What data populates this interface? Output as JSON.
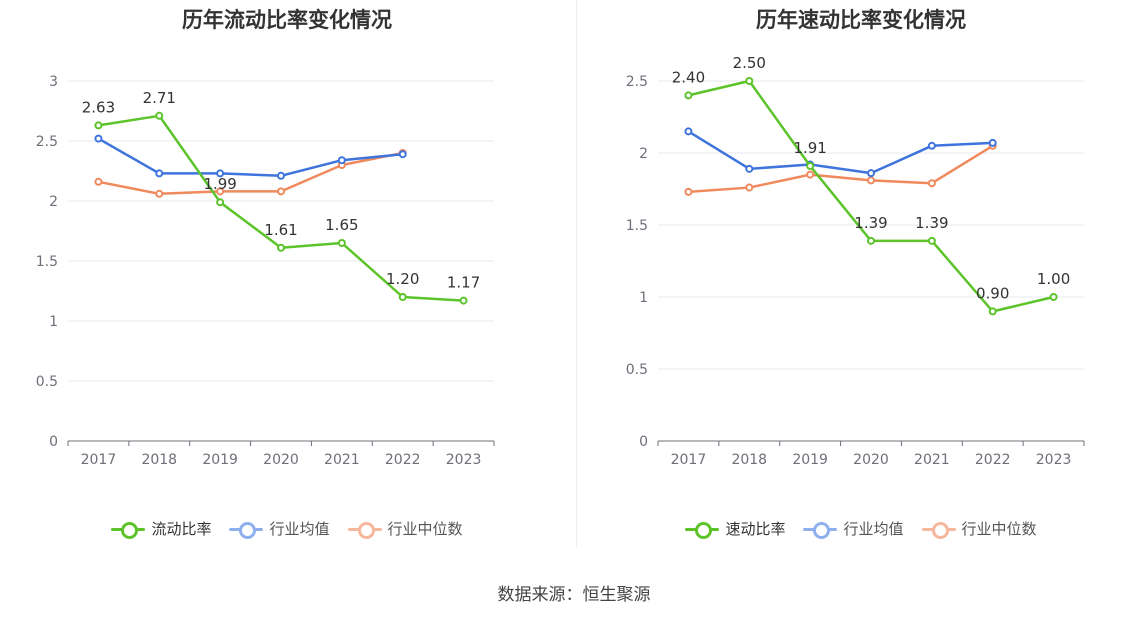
{
  "colors": {
    "primary": "#5cc42a",
    "industry_avg": "#3f74dd",
    "industry_median": "#f08a5d",
    "grid": "#e6e9f2",
    "axis": "#6e7079"
  },
  "footer": "数据来源：恒生聚源",
  "chart_data": [
    {
      "type": "line",
      "title": "历年流动比率变化情况",
      "categories": [
        "2017",
        "2018",
        "2019",
        "2020",
        "2021",
        "2022",
        "2023"
      ],
      "yticks": [
        "0",
        "0.5",
        "1",
        "1.5",
        "2",
        "2.5",
        "3"
      ],
      "ylim": [
        0,
        3
      ],
      "grid": true,
      "legend_position": "bottom",
      "series": [
        {
          "name": "流动比率",
          "values": [
            2.63,
            2.71,
            1.99,
            1.61,
            1.65,
            1.2,
            1.17
          ],
          "labels": [
            "2.63",
            "2.71",
            "1.99",
            "1.61",
            "1.65",
            "1.20",
            "1.17"
          ]
        },
        {
          "name": "行业均值",
          "values": [
            2.52,
            2.23,
            2.23,
            2.21,
            2.34,
            2.39,
            null
          ]
        },
        {
          "name": "行业中位数",
          "values": [
            2.16,
            2.06,
            2.08,
            2.08,
            2.3,
            2.4,
            null
          ]
        }
      ]
    },
    {
      "type": "line",
      "title": "历年速动比率变化情况",
      "categories": [
        "2017",
        "2018",
        "2019",
        "2020",
        "2021",
        "2022",
        "2023"
      ],
      "yticks": [
        "0",
        "0.5",
        "1",
        "1.5",
        "2",
        "2.5"
      ],
      "ylim": [
        0,
        2.5
      ],
      "grid": true,
      "legend_position": "bottom",
      "series": [
        {
          "name": "速动比率",
          "values": [
            2.4,
            2.5,
            1.91,
            1.39,
            1.39,
            0.9,
            1.0
          ],
          "labels": [
            "2.40",
            "2.50",
            "1.91",
            "1.39",
            "1.39",
            "0.90",
            "1.00"
          ]
        },
        {
          "name": "行业均值",
          "values": [
            2.15,
            1.89,
            1.92,
            1.86,
            2.05,
            2.07,
            null
          ]
        },
        {
          "name": "行业中位数",
          "values": [
            1.73,
            1.76,
            1.85,
            1.81,
            1.79,
            2.05,
            null
          ]
        }
      ]
    }
  ]
}
